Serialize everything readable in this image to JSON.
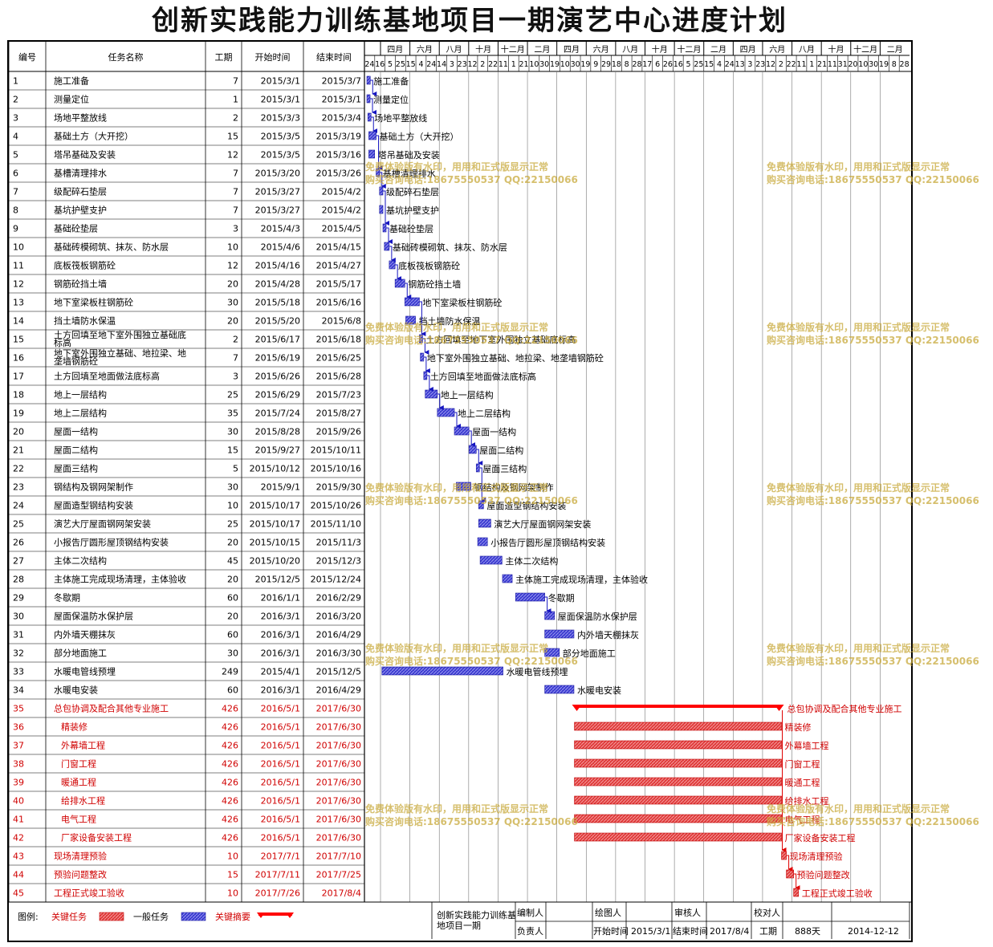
{
  "title": "创新实践能力训练基地项目一期演艺中心进度计划",
  "columns": {
    "id": "编号",
    "name": "任务名称",
    "duration": "工期",
    "start": "开始时间",
    "end": "结束时间"
  },
  "timeline": {
    "months": [
      "四月",
      "六月",
      "八月",
      "十月",
      "十二月",
      "二月",
      "四月",
      "六月",
      "八月",
      "十月",
      "十二月",
      "二月",
      "四月",
      "六月",
      "八月",
      "十月",
      "十二月",
      "二月"
    ],
    "ticks": [
      "24",
      "16",
      "5",
      "25",
      "15",
      "4",
      "24",
      "14",
      "3",
      "23",
      "12",
      "2",
      "22",
      "11",
      "1",
      "21",
      "10",
      "30",
      "19",
      "10",
      "30",
      "19",
      "9",
      "29",
      "18",
      "8",
      "28",
      "17",
      "6",
      "26",
      "16",
      "5",
      "25",
      "15",
      "4",
      "24",
      "13",
      "3",
      "23",
      "12",
      "2",
      "22",
      "11",
      "1",
      "21",
      "11",
      "31",
      "20",
      "10",
      "30",
      "19",
      "8",
      "28"
    ]
  },
  "tasks": [
    {
      "id": "1",
      "name": "施工准备",
      "duration": "7",
      "start": "2015/3/1",
      "end": "2015/3/7",
      "critical": false
    },
    {
      "id": "2",
      "name": "测量定位",
      "duration": "1",
      "start": "2015/3/1",
      "end": "2015/3/1",
      "critical": false
    },
    {
      "id": "3",
      "name": "场地平整放线",
      "duration": "2",
      "start": "2015/3/3",
      "end": "2015/3/4",
      "critical": false
    },
    {
      "id": "4",
      "name": "基础土方（大开挖）",
      "duration": "15",
      "start": "2015/3/5",
      "end": "2015/3/19",
      "critical": false
    },
    {
      "id": "5",
      "name": "塔吊基础及安装",
      "duration": "12",
      "start": "2015/3/5",
      "end": "2015/3/16",
      "critical": false
    },
    {
      "id": "6",
      "name": "基槽清理排水",
      "duration": "7",
      "start": "2015/3/20",
      "end": "2015/3/26",
      "critical": false
    },
    {
      "id": "7",
      "name": "级配碎石垫层",
      "duration": "7",
      "start": "2015/3/27",
      "end": "2015/4/2",
      "critical": false
    },
    {
      "id": "8",
      "name": "基坑护壁支护",
      "duration": "7",
      "start": "2015/3/27",
      "end": "2015/4/2",
      "critical": false
    },
    {
      "id": "9",
      "name": "基础砼垫层",
      "duration": "3",
      "start": "2015/4/3",
      "end": "2015/4/5",
      "critical": false
    },
    {
      "id": "10",
      "name": "基础砖模砌筑、抹灰、防水层",
      "duration": "10",
      "start": "2015/4/6",
      "end": "2015/4/15",
      "critical": false
    },
    {
      "id": "11",
      "name": "底板筏板钢筋砼",
      "duration": "12",
      "start": "2015/4/16",
      "end": "2015/4/27",
      "critical": false
    },
    {
      "id": "12",
      "name": "钢筋砼挡土墙",
      "duration": "20",
      "start": "2015/4/28",
      "end": "2015/5/17",
      "critical": false
    },
    {
      "id": "13",
      "name": "地下室梁板柱钢筋砼",
      "duration": "30",
      "start": "2015/5/18",
      "end": "2015/6/16",
      "critical": false
    },
    {
      "id": "14",
      "name": "挡土墙防水保温",
      "duration": "20",
      "start": "2015/5/20",
      "end": "2015/6/8",
      "critical": false
    },
    {
      "id": "15",
      "name": "土方回填至地下室外围独立基础底标高",
      "duration": "2",
      "start": "2015/6/17",
      "end": "2015/6/18",
      "critical": false
    },
    {
      "id": "16",
      "name": "地下室外围独立基础、地拉梁、地垄墙钢筋砼",
      "duration": "7",
      "start": "2015/6/19",
      "end": "2015/6/25",
      "critical": false
    },
    {
      "id": "17",
      "name": "土方回填至地面做法底标高",
      "duration": "3",
      "start": "2015/6/26",
      "end": "2015/6/28",
      "critical": false
    },
    {
      "id": "18",
      "name": "地上一层结构",
      "duration": "25",
      "start": "2015/6/29",
      "end": "2015/7/23",
      "critical": false
    },
    {
      "id": "19",
      "name": "地上二层结构",
      "duration": "35",
      "start": "2015/7/24",
      "end": "2015/8/27",
      "critical": false
    },
    {
      "id": "20",
      "name": "屋面一结构",
      "duration": "30",
      "start": "2015/8/28",
      "end": "2015/9/26",
      "critical": false
    },
    {
      "id": "21",
      "name": "屋面二结构",
      "duration": "15",
      "start": "2015/9/27",
      "end": "2015/10/11",
      "critical": false
    },
    {
      "id": "22",
      "name": "屋面三结构",
      "duration": "5",
      "start": "2015/10/12",
      "end": "2015/10/16",
      "critical": false
    },
    {
      "id": "23",
      "name": "钢结构及钢网架制作",
      "duration": "30",
      "start": "2015/9/1",
      "end": "2015/9/30",
      "critical": false
    },
    {
      "id": "24",
      "name": "屋面造型钢结构安装",
      "duration": "10",
      "start": "2015/10/17",
      "end": "2015/10/26",
      "critical": false
    },
    {
      "id": "25",
      "name": "演艺大厅屋面钢网架安装",
      "duration": "25",
      "start": "2015/10/17",
      "end": "2015/11/10",
      "critical": false
    },
    {
      "id": "26",
      "name": "小报告厅圆形屋顶钢结构安装",
      "duration": "20",
      "start": "2015/10/15",
      "end": "2015/11/3",
      "critical": false
    },
    {
      "id": "27",
      "name": "主体二次结构",
      "duration": "45",
      "start": "2015/10/20",
      "end": "2015/12/3",
      "critical": false
    },
    {
      "id": "28",
      "name": "主体施工完成现场清理，主体验收",
      "duration": "20",
      "start": "2015/12/5",
      "end": "2015/12/24",
      "critical": false
    },
    {
      "id": "29",
      "name": "冬歇期",
      "duration": "60",
      "start": "2016/1/1",
      "end": "2016/2/29",
      "critical": false
    },
    {
      "id": "30",
      "name": "屋面保温防水保护层",
      "duration": "20",
      "start": "2016/3/1",
      "end": "2016/3/20",
      "critical": false
    },
    {
      "id": "31",
      "name": "内外墙天棚抹灰",
      "duration": "60",
      "start": "2016/3/1",
      "end": "2016/4/29",
      "critical": false
    },
    {
      "id": "32",
      "name": "部分地面施工",
      "duration": "30",
      "start": "2016/3/1",
      "end": "2016/3/30",
      "critical": false
    },
    {
      "id": "33",
      "name": "水暖电管线预埋",
      "duration": "249",
      "start": "2015/4/1",
      "end": "2015/12/5",
      "critical": false
    },
    {
      "id": "34",
      "name": "水暖电安装",
      "duration": "60",
      "start": "2016/3/1",
      "end": "2016/4/29",
      "critical": false
    },
    {
      "id": "35",
      "name": "总包协调及配合其他专业施工",
      "duration": "426",
      "start": "2016/5/1",
      "end": "2017/6/30",
      "critical": true,
      "summary": true
    },
    {
      "id": "36",
      "name": "精装修",
      "duration": "426",
      "start": "2016/5/1",
      "end": "2017/6/30",
      "critical": true,
      "indent": true
    },
    {
      "id": "37",
      "name": "外幕墙工程",
      "duration": "426",
      "start": "2016/5/1",
      "end": "2017/6/30",
      "critical": true,
      "indent": true
    },
    {
      "id": "38",
      "name": "门窗工程",
      "duration": "426",
      "start": "2016/5/1",
      "end": "2017/6/30",
      "critical": true,
      "indent": true
    },
    {
      "id": "39",
      "name": "暖通工程",
      "duration": "426",
      "start": "2016/5/1",
      "end": "2017/6/30",
      "critical": true,
      "indent": true
    },
    {
      "id": "40",
      "name": "给排水工程",
      "duration": "426",
      "start": "2016/5/1",
      "end": "2017/6/30",
      "critical": true,
      "indent": true
    },
    {
      "id": "41",
      "name": "电气工程",
      "duration": "426",
      "start": "2016/5/1",
      "end": "2017/6/30",
      "critical": true,
      "indent": true
    },
    {
      "id": "42",
      "name": "厂家设备安装工程",
      "duration": "426",
      "start": "2016/5/1",
      "end": "2017/6/30",
      "critical": true,
      "indent": true
    },
    {
      "id": "43",
      "name": "现场清理预验",
      "duration": "10",
      "start": "2017/7/1",
      "end": "2017/7/10",
      "critical": true
    },
    {
      "id": "44",
      "name": "预验问题整改",
      "duration": "15",
      "start": "2017/7/11",
      "end": "2017/7/25",
      "critical": true
    },
    {
      "id": "45",
      "name": "工程正式竣工验收",
      "duration": "10",
      "start": "2017/7/26",
      "end": "2017/8/4",
      "critical": true
    }
  ],
  "legend": {
    "label": "图例:",
    "critical": "关键任务",
    "normal": "一般任务",
    "summary": "关键摘要"
  },
  "footer": {
    "project": "创新实践能力训练基地项目一期",
    "prepared_by": "编制人",
    "responsible": "负责人",
    "drawn_by": "绘图人",
    "reviewed_by": "审核人",
    "checked_by": "校对人",
    "start_label": "开始时间",
    "start_value": "2015/3/1",
    "end_label": "结束时间",
    "end_value": "2017/8/4",
    "duration_label": "工期",
    "duration_value": "888天",
    "date": "2014-12-12"
  },
  "watermark": {
    "line1": "免费体验版有水印，用用和正式版显示正常",
    "line2": "购买咨询电话:18675550537 QQ:22150066"
  },
  "colors": {
    "normal_bar": "#3b3bd0",
    "critical_bar": "#e03a3a",
    "summary_bar": "#ff0000",
    "critical_text": "#d00000",
    "watermark": "#c8aa3c"
  },
  "chart_data": {
    "type": "gantt",
    "title": "创新实践能力训练基地项目一期演艺中心进度计划",
    "x_range": [
      "2015/3/1",
      "2017/8/4"
    ],
    "series": [
      {
        "name": "一般任务",
        "tasks": [
          "1",
          "2",
          "3",
          "4",
          "5",
          "6",
          "7",
          "8",
          "9",
          "10",
          "11",
          "12",
          "13",
          "14",
          "15",
          "16",
          "17",
          "18",
          "19",
          "20",
          "21",
          "22",
          "23",
          "24",
          "25",
          "26",
          "27",
          "28",
          "29",
          "30",
          "31",
          "32",
          "33",
          "34"
        ]
      },
      {
        "name": "关键任务",
        "tasks": [
          "36",
          "37",
          "38",
          "39",
          "40",
          "41",
          "42",
          "43",
          "44",
          "45"
        ]
      },
      {
        "name": "关键摘要",
        "tasks": [
          "35"
        ]
      }
    ]
  }
}
